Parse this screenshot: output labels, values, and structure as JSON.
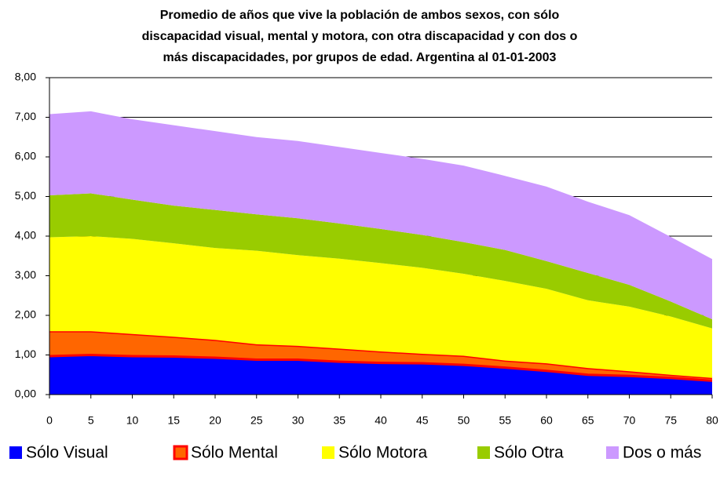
{
  "chart_data": {
    "type": "stacked_area",
    "title": [
      "Promedio de años que vive la población de ambos sexos, con sólo",
      "discapacidad visual, mental y motora, con otra discapacidad y con dos o",
      "más discapacidades, por grupos de edad. Argentina al 01-01-2003"
    ],
    "x": [
      0,
      5,
      10,
      15,
      20,
      25,
      30,
      35,
      40,
      45,
      50,
      55,
      60,
      65,
      70,
      75,
      80
    ],
    "xlim": [
      0,
      80
    ],
    "xticks": [
      0,
      5,
      10,
      15,
      20,
      25,
      30,
      35,
      40,
      45,
      50,
      55,
      60,
      65,
      70,
      75,
      80
    ],
    "ylim": [
      0,
      8
    ],
    "yticks": [
      {
        "value": 0,
        "label": "0,00"
      },
      {
        "value": 1,
        "label": "1,00"
      },
      {
        "value": 2,
        "label": "2,00"
      },
      {
        "value": 3,
        "label": "3,00"
      },
      {
        "value": 4,
        "label": "4,00"
      },
      {
        "value": 5,
        "label": "5,00"
      },
      {
        "value": 6,
        "label": "6,00"
      },
      {
        "value": 7,
        "label": "7,00"
      },
      {
        "value": 8,
        "label": "8,00"
      }
    ],
    "grid": true,
    "legend": "bottom",
    "series": [
      {
        "name": "Sólo Visual",
        "color": "#0000ff",
        "values": [
          0.97,
          1.0,
          0.97,
          0.96,
          0.93,
          0.88,
          0.88,
          0.83,
          0.8,
          0.79,
          0.75,
          0.68,
          0.6,
          0.5,
          0.47,
          0.42,
          0.35
        ]
      },
      {
        "name": "Sólo Mental",
        "color": "#ff6600",
        "edge_color": "#ff0000",
        "values": [
          0.63,
          0.6,
          0.56,
          0.5,
          0.45,
          0.39,
          0.35,
          0.33,
          0.29,
          0.24,
          0.23,
          0.18,
          0.19,
          0.17,
          0.12,
          0.08,
          0.07
        ]
      },
      {
        "name": "Sólo Motora",
        "color": "#ffff00",
        "values": [
          2.37,
          2.4,
          2.4,
          2.36,
          2.32,
          2.36,
          2.29,
          2.27,
          2.23,
          2.17,
          2.07,
          2.01,
          1.88,
          1.71,
          1.63,
          1.47,
          1.25
        ]
      },
      {
        "name": "Sólo Otra",
        "color": "#99cc00",
        "values": [
          1.06,
          1.08,
          0.99,
          0.95,
          0.96,
          0.92,
          0.93,
          0.89,
          0.86,
          0.83,
          0.8,
          0.78,
          0.7,
          0.69,
          0.55,
          0.38,
          0.23
        ]
      },
      {
        "name": "Dos o más",
        "color": "#cc99ff",
        "values": [
          2.05,
          2.07,
          2.03,
          2.03,
          1.99,
          1.95,
          1.95,
          1.93,
          1.92,
          1.92,
          1.93,
          1.87,
          1.88,
          1.8,
          1.76,
          1.63,
          1.52
        ]
      }
    ]
  }
}
